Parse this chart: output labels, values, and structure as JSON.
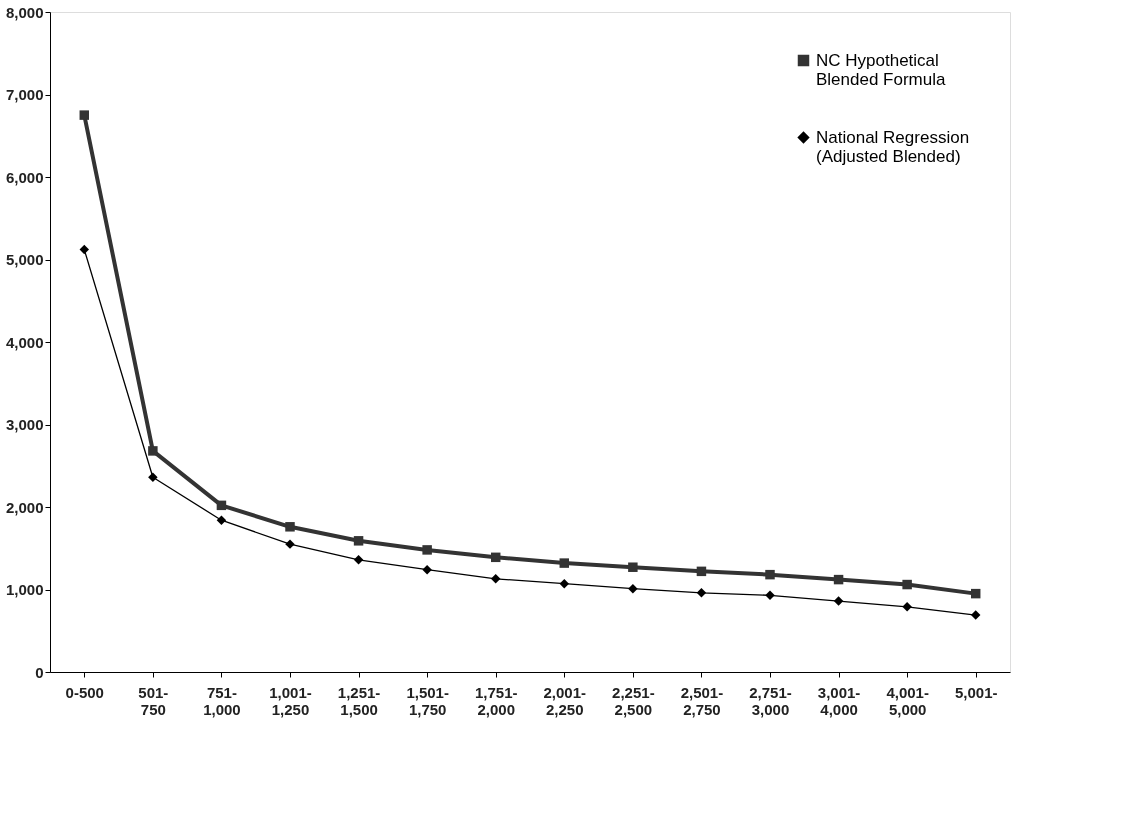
{
  "chart_data": {
    "type": "line",
    "categories": [
      "0-500",
      "501- 750",
      "751- 1,000",
      "1,001- 1,250",
      "1,251- 1,500",
      "1,501- 1,750",
      "1,751- 2,000",
      "2,001- 2,250",
      "2,251- 2,500",
      "2,501- 2,750",
      "2,751- 3,000",
      "3,001- 4,000",
      "4,001- 5,000",
      "5,001-"
    ],
    "series": [
      {
        "name": "NC Hypothetical Blended Formula",
        "color": "#333333",
        "marker": "square",
        "values": [
          6750,
          2680,
          2020,
          1760,
          1590,
          1480,
          1390,
          1320,
          1270,
          1220,
          1180,
          1120,
          1060,
          950
        ]
      },
      {
        "name": "National Regression (Adjusted Blended)",
        "color": "#000000",
        "marker": "diamond",
        "values": [
          5120,
          2360,
          1840,
          1550,
          1360,
          1240,
          1130,
          1070,
          1010,
          960,
          930,
          860,
          790,
          690
        ]
      }
    ],
    "ylim": [
      0,
      8000
    ],
    "yticks": [
      0,
      {
        "value": 1000,
        "label": "1,000"
      },
      {
        "value": 2000,
        "label": "2,000"
      },
      {
        "value": 3000,
        "label": "3,000"
      },
      {
        "value": 4000,
        "label": "4,000"
      },
      {
        "value": 5000,
        "label": "5,000"
      },
      {
        "value": 6000,
        "label": "6,000"
      },
      {
        "value": 7000,
        "label": "7,000"
      },
      {
        "value": 8000,
        "label": "8,000"
      }
    ],
    "grid": false,
    "legend": "top right",
    "line_style": "solid"
  }
}
